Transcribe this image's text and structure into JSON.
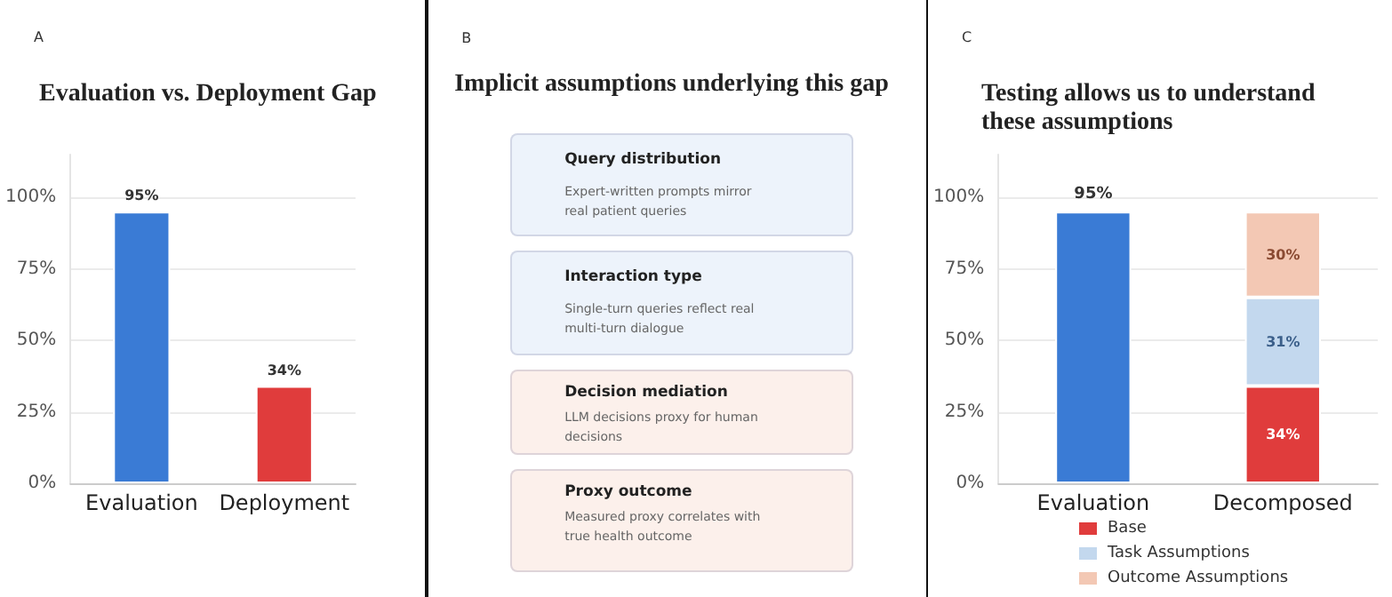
{
  "chart_data": [
    {
      "type": "bar",
      "title": "Evaluation vs. Deployment Gap",
      "annotations": [
        "A"
      ],
      "categories": [
        "Evaluation",
        "Deployment"
      ],
      "values": [
        95,
        34
      ],
      "colors": [
        "#3a7bd5",
        "#e03c3c"
      ],
      "value_labels": [
        "95%",
        "34%"
      ],
      "ylim": [
        0,
        115
      ],
      "yticks": [
        {
          "value": 0,
          "label": "0%"
        },
        {
          "value": 25,
          "label": "25%"
        },
        {
          "value": 50,
          "label": "50%"
        },
        {
          "value": 75,
          "label": "75%"
        },
        {
          "value": 100,
          "label": "100%"
        }
      ],
      "grid": "y"
    },
    {
      "type": "other",
      "title": "Implicit assumptions underlying this gap",
      "annotations": [
        "B",
        "Expert-written prompts mirror real patient queries",
        "Single-turn queries reflect real multi-turn dialogue",
        "LLM decisions proxy for human decisions",
        "Measured proxy correlates with true health outcome"
      ],
      "categories": [
        "Query distribution",
        "Interaction type",
        "Decision mediation",
        "Proxy outcome"
      ],
      "colors": [
        "#edf3fb",
        "#edf3fb",
        "#fcf0eb",
        "#fcf0eb"
      ]
    },
    {
      "type": "bar",
      "stacked": true,
      "title": "Testing allows us to understand these assumptions",
      "annotations": [
        "C"
      ],
      "categories": [
        "Evaluation",
        "Decomposed"
      ],
      "series": [
        {
          "color": "#3a7bd5",
          "values": [
            95,
            null
          ],
          "value_labels": [
            "95%",
            null
          ]
        },
        {
          "name": "Base",
          "color": "#e03c3c",
          "values": [
            null,
            34
          ],
          "value_labels": [
            null,
            "34%"
          ]
        },
        {
          "name": "Task Assumptions",
          "color": "#c3d8ee",
          "values": [
            null,
            31
          ],
          "value_labels": [
            null,
            "31%"
          ]
        },
        {
          "name": "Outcome Assumptions",
          "color": "#f3c8b4",
          "values": [
            null,
            30
          ],
          "value_labels": [
            null,
            "30%"
          ]
        }
      ],
      "ylim": [
        0,
        115
      ],
      "yticks": [
        {
          "value": 0,
          "label": "0%"
        },
        {
          "value": 25,
          "label": "25%"
        },
        {
          "value": 50,
          "label": "50%"
        },
        {
          "value": 75,
          "label": "75%"
        },
        {
          "value": 100,
          "label": "100%"
        }
      ],
      "grid": "y",
      "legend": "bottom"
    }
  ]
}
